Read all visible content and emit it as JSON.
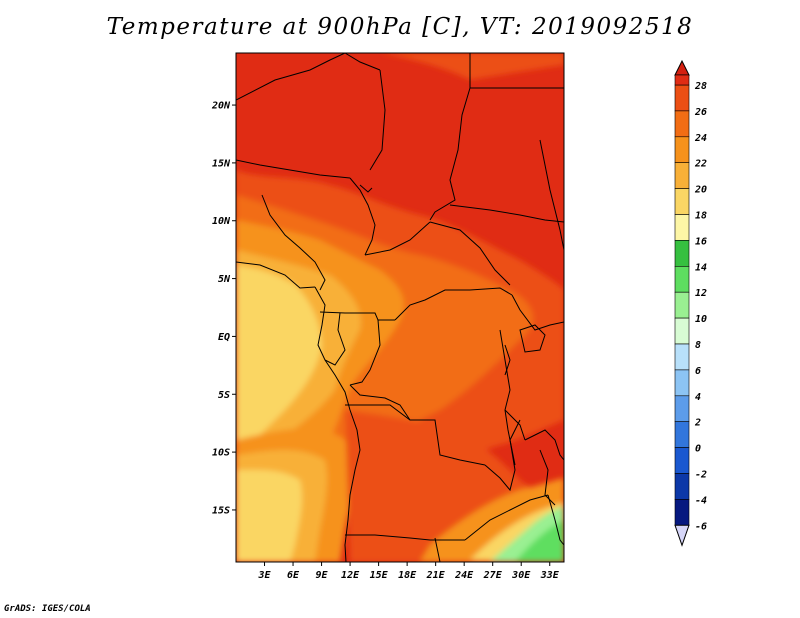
{
  "title": "Temperature at 900hPa [C], VT: 2019092518",
  "credit": "GrADS: IGES/COLA",
  "map": {
    "lat_range": [
      -19.5,
      24.5
    ],
    "lon_range": [
      0,
      34.5
    ],
    "lat_ticks": [
      {
        "value": 20,
        "label": "20N"
      },
      {
        "value": 15,
        "label": "15N"
      },
      {
        "value": 10,
        "label": "10N"
      },
      {
        "value": 5,
        "label": "5N"
      },
      {
        "value": 0,
        "label": "EQ"
      },
      {
        "value": -5,
        "label": "5S"
      },
      {
        "value": -10,
        "label": "10S"
      },
      {
        "value": -15,
        "label": "15S"
      }
    ],
    "lon_ticks": [
      {
        "value": 3,
        "label": "3E"
      },
      {
        "value": 6,
        "label": "6E"
      },
      {
        "value": 9,
        "label": "9E"
      },
      {
        "value": 12,
        "label": "12E"
      },
      {
        "value": 15,
        "label": "15E"
      },
      {
        "value": 18,
        "label": "18E"
      },
      {
        "value": 21,
        "label": "21E"
      },
      {
        "value": 24,
        "label": "24E"
      },
      {
        "value": 27,
        "label": "27E"
      },
      {
        "value": 30,
        "label": "30E"
      },
      {
        "value": 33,
        "label": "33E"
      }
    ]
  },
  "colorbar": {
    "levels": [
      {
        "label": "28",
        "color": "#e02c14"
      },
      {
        "label": "26",
        "color": "#ec4f14"
      },
      {
        "label": "24",
        "color": "#f26d14"
      },
      {
        "label": "22",
        "color": "#f6921c"
      },
      {
        "label": "20",
        "color": "#f8b038"
      },
      {
        "label": "18",
        "color": "#fad664"
      },
      {
        "label": "16",
        "color": "#fdf6a6"
      },
      {
        "label": "14",
        "color": "#36c040"
      },
      {
        "label": "12",
        "color": "#5ede60"
      },
      {
        "label": "10",
        "color": "#9af092"
      },
      {
        "label": "8",
        "color": "#d8fcd4"
      },
      {
        "label": "6",
        "color": "#b8e0fa"
      },
      {
        "label": "4",
        "color": "#8cc4f4"
      },
      {
        "label": "2",
        "color": "#5c9cea"
      },
      {
        "label": "0",
        "color": "#3276dc"
      },
      {
        "label": "-2",
        "color": "#1a58d0"
      },
      {
        "label": "-4",
        "color": "#0c38a8"
      },
      {
        "label": "-6",
        "color": "#061880"
      }
    ],
    "over_color": "#d42010",
    "under_color": "#d6d6f8"
  },
  "colors": {
    "hot": "#e02c14",
    "warm": "#ec4f14",
    "orange": "#f26d14",
    "light_orange": "#f6921c",
    "tan": "#f8b038",
    "pale": "#fad664",
    "cream": "#fdf6a6",
    "green": "#5ede60",
    "light_green": "#9af092",
    "border": "#000000"
  }
}
